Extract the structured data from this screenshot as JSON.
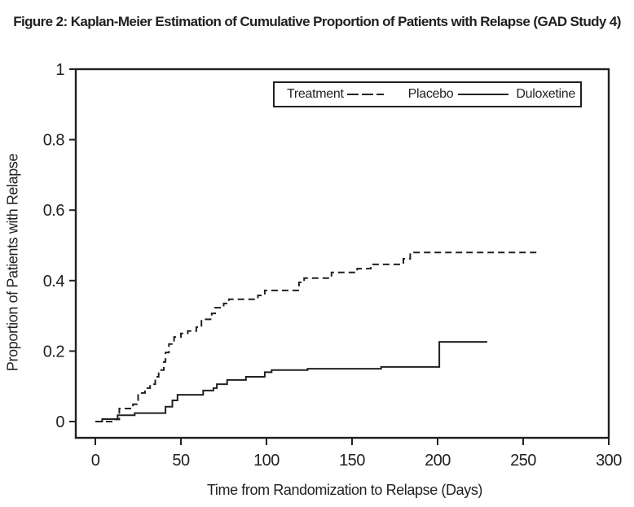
{
  "title": "Figure 2: Kaplan-Meier Estimation of Cumulative Proportion of Patients with Relapse (GAD Study 4)",
  "colors": {
    "ink": "#231f20",
    "background": "#ffffff"
  },
  "chart_data": {
    "type": "line",
    "subtype": "kaplan_meier_step",
    "title": "Figure 2: Kaplan-Meier Estimation of Cumulative Proportion of Patients with Relapse (GAD Study 4)",
    "xlabel": "Time from Randomization to Relapse (Days)",
    "ylabel": "Proportion of Patients with Relapse",
    "xlim": [
      0,
      300
    ],
    "ylim": [
      0,
      1
    ],
    "grid": false,
    "xticks": {
      "values": [
        0,
        50,
        100,
        150,
        200,
        250,
        300
      ],
      "labels": [
        "0",
        "50",
        "100",
        "150",
        "200",
        "250",
        "300"
      ]
    },
    "yticks": {
      "values": [
        0,
        0.2,
        0.4,
        0.6,
        0.8,
        1
      ],
      "labels": [
        "0",
        "0.2",
        "0.4",
        "0.6",
        "0.8",
        "1"
      ]
    },
    "legend": {
      "header": "Treatment",
      "position": "top-center-inside",
      "entries": [
        {
          "label": "Placebo",
          "line_style": "dashed"
        },
        {
          "label": "Duloxetine",
          "line_style": "solid"
        }
      ]
    },
    "series": [
      {
        "name": "Placebo",
        "line_style": "dashed",
        "step": "post",
        "points": [
          [
            0,
            0
          ],
          [
            11,
            0.006
          ],
          [
            14,
            0.037
          ],
          [
            22,
            0.049
          ],
          [
            25,
            0.081
          ],
          [
            29,
            0.095
          ],
          [
            32,
            0.106
          ],
          [
            35,
            0.127
          ],
          [
            37,
            0.146
          ],
          [
            40,
            0.169
          ],
          [
            41,
            0.196
          ],
          [
            43,
            0.22
          ],
          [
            46,
            0.24
          ],
          [
            50,
            0.25
          ],
          [
            54,
            0.257
          ],
          [
            59,
            0.268
          ],
          [
            62,
            0.29
          ],
          [
            68,
            0.307
          ],
          [
            70,
            0.323
          ],
          [
            75,
            0.335
          ],
          [
            78,
            0.347
          ],
          [
            95,
            0.358
          ],
          [
            99,
            0.372
          ],
          [
            119,
            0.395
          ],
          [
            122,
            0.407
          ],
          [
            138,
            0.423
          ],
          [
            153,
            0.434
          ],
          [
            161,
            0.446
          ],
          [
            180,
            0.462
          ],
          [
            184,
            0.48
          ],
          [
            260,
            0.48
          ]
        ]
      },
      {
        "name": "Duloxetine",
        "line_style": "solid",
        "step": "post",
        "points": [
          [
            0,
            0
          ],
          [
            4,
            0.007
          ],
          [
            13,
            0.018
          ],
          [
            23,
            0.024
          ],
          [
            41,
            0.042
          ],
          [
            45,
            0.06
          ],
          [
            48,
            0.076
          ],
          [
            63,
            0.088
          ],
          [
            69,
            0.095
          ],
          [
            71,
            0.106
          ],
          [
            77,
            0.118
          ],
          [
            88,
            0.127
          ],
          [
            99,
            0.14
          ],
          [
            103,
            0.146
          ],
          [
            124,
            0.15
          ],
          [
            167,
            0.155
          ],
          [
            201,
            0.226
          ],
          [
            229,
            0.226
          ]
        ]
      }
    ]
  }
}
